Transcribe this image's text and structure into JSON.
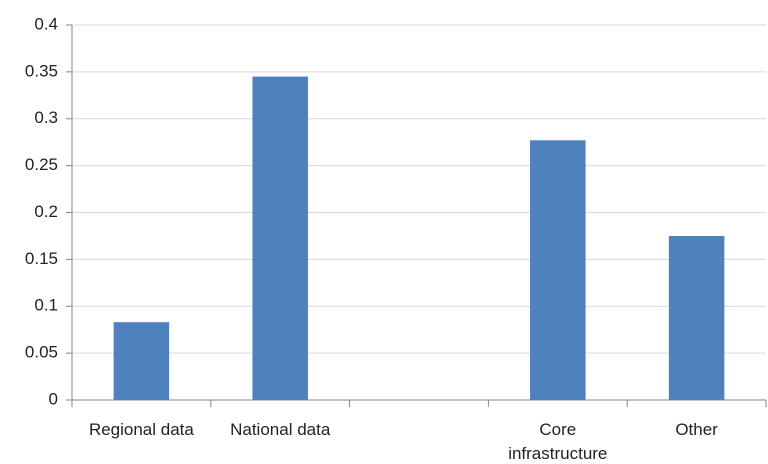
{
  "chart_data": {
    "type": "bar",
    "categories": [
      "Regional data",
      "National data",
      null,
      "Core infrastructure",
      "Other"
    ],
    "values": [
      0.083,
      0.345,
      null,
      0.277,
      0.175
    ],
    "color": "#4f81bd",
    "ylim": [
      0,
      0.4
    ],
    "yticks": [
      0,
      0.05,
      0.1,
      0.15,
      0.2,
      0.25,
      0.3,
      0.35,
      0.4
    ],
    "grid": true
  }
}
